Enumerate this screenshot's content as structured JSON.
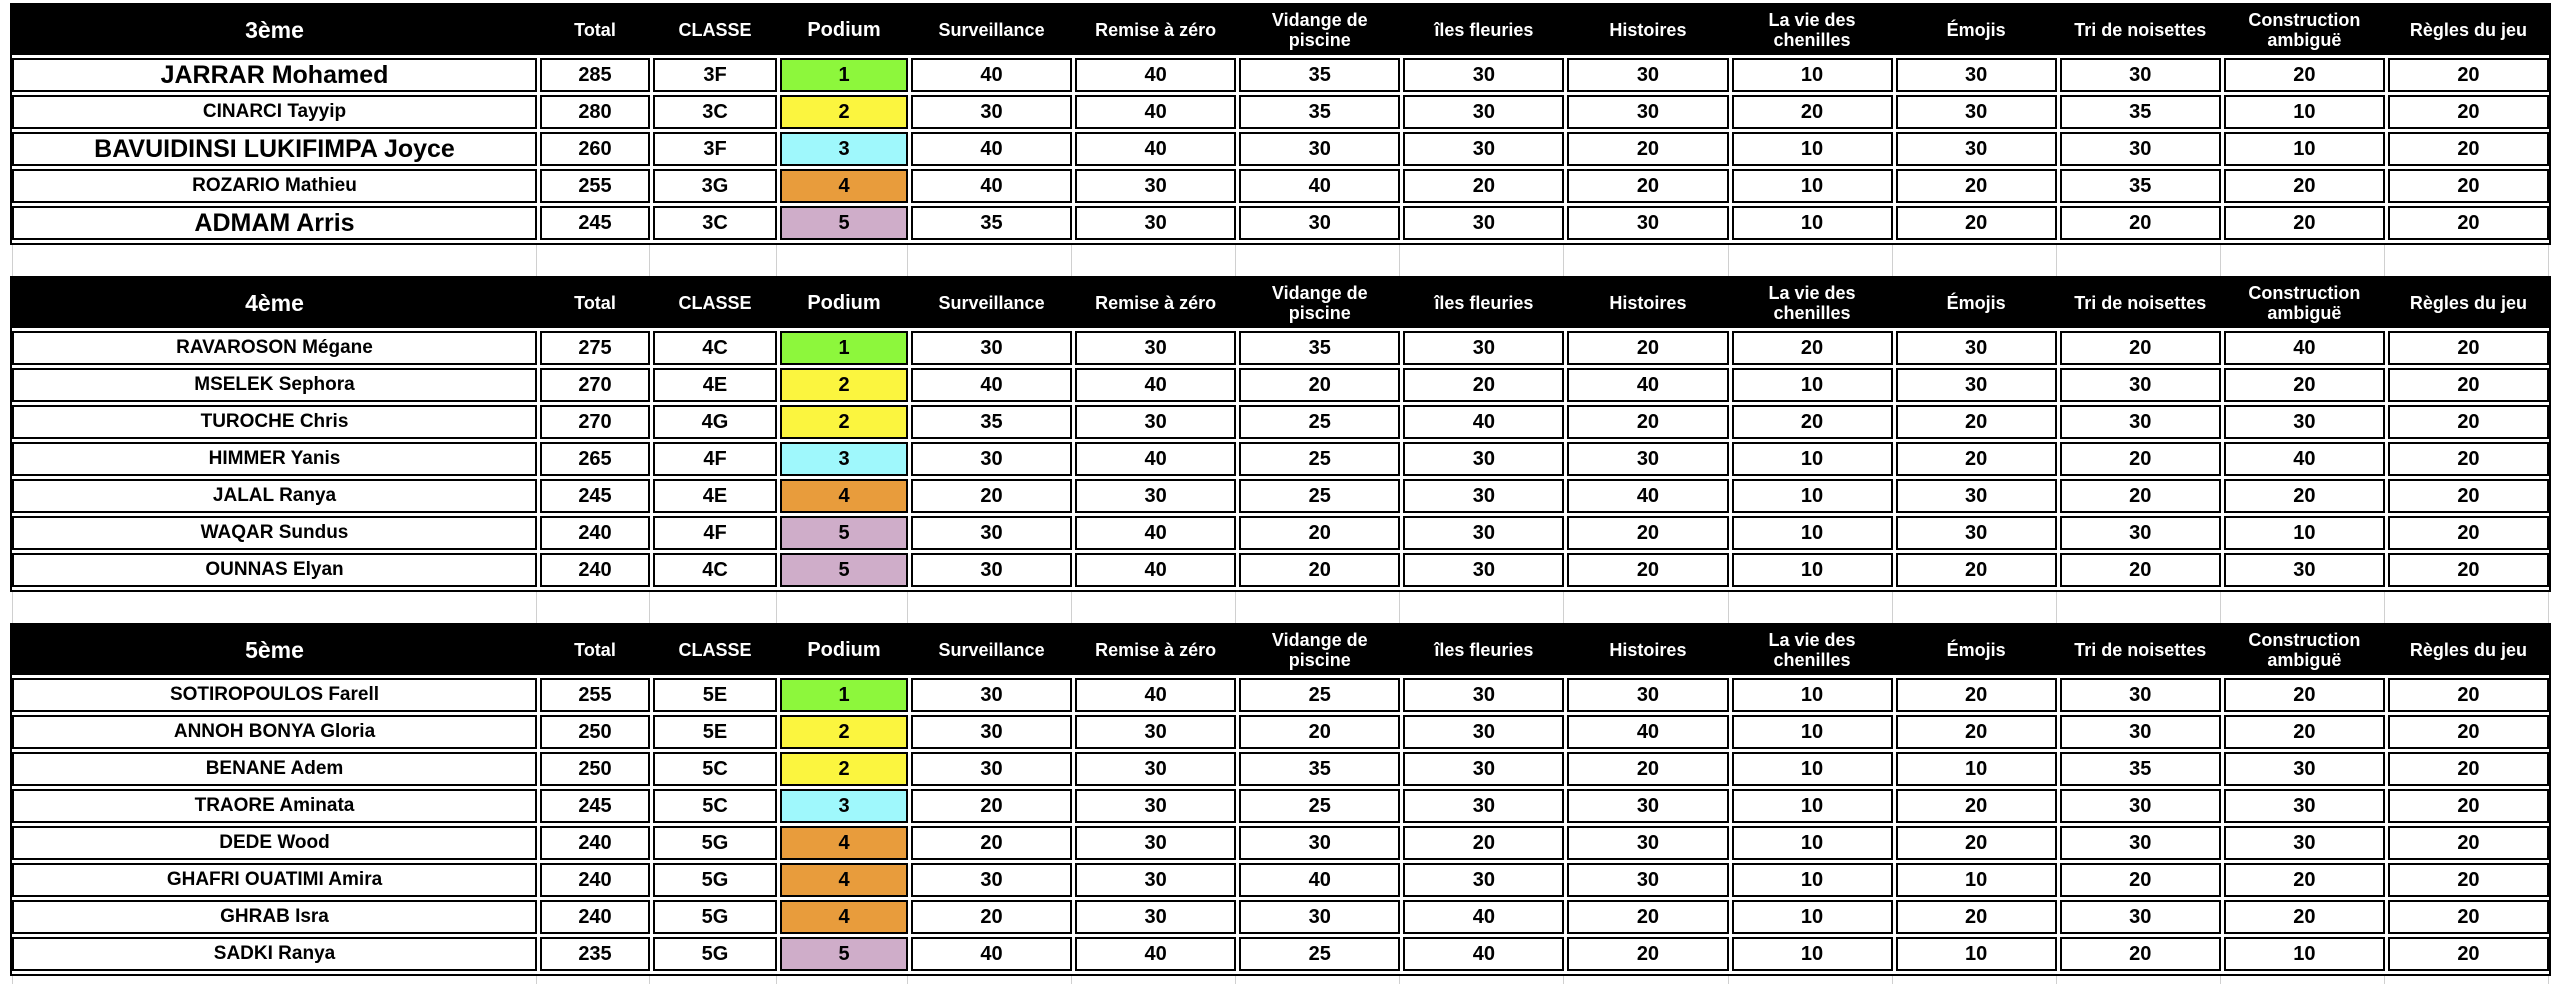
{
  "sheet": {
    "header_labels": {
      "total": "Total",
      "classe": "CLASSE",
      "podium": "Podium"
    },
    "criteria": [
      "Surveillance",
      "Remise à zéro",
      "Vidange de piscine",
      "îles fleuries",
      "Histoires",
      "La vie des chenilles",
      "Émojis",
      "Tri de noisettes",
      "Construction ambiguë",
      "Règles du jeu"
    ],
    "podium_colors": {
      "1": "#8DF73C",
      "2": "#FBF53F",
      "3": "#9FF8FC",
      "4": "#E89C3C",
      "5": "#CFADC9"
    },
    "grid_line_color": "#d0d0d0",
    "header_bg": "#000000",
    "header_text_color": "#ffffff",
    "tables": [
      {
        "grade": "3ème",
        "rows": [
          {
            "name": "JARRAR Mohamed",
            "name_style": "large",
            "total": 285,
            "classe": "3F",
            "podium": "1",
            "scores": [
              40,
              40,
              35,
              30,
              30,
              10,
              30,
              30,
              20,
              20
            ]
          },
          {
            "name": "CINARCI Tayyip",
            "name_style": "normal",
            "total": 280,
            "classe": "3C",
            "podium": "2",
            "scores": [
              30,
              40,
              35,
              30,
              30,
              20,
              30,
              35,
              10,
              20
            ]
          },
          {
            "name": "BAVUIDINSI LUKIFIMPA Joyce",
            "name_style": "large",
            "total": 260,
            "classe": "3F",
            "podium": "3",
            "scores": [
              40,
              40,
              30,
              30,
              20,
              10,
              30,
              30,
              10,
              20
            ]
          },
          {
            "name": "ROZARIO Mathieu",
            "name_style": "normal",
            "total": 255,
            "classe": "3G",
            "podium": "4",
            "scores": [
              40,
              30,
              40,
              20,
              20,
              10,
              20,
              35,
              20,
              20
            ]
          },
          {
            "name": "ADMAM Arris",
            "name_style": "large",
            "total": 245,
            "classe": "3C",
            "podium": "5",
            "scores": [
              35,
              30,
              30,
              30,
              30,
              10,
              20,
              20,
              20,
              20
            ]
          }
        ]
      },
      {
        "grade": "4ème",
        "rows": [
          {
            "name": "RAVAROSON Mégane",
            "name_style": "normal",
            "total": 275,
            "classe": "4C",
            "podium": "1",
            "scores": [
              30,
              30,
              35,
              30,
              20,
              20,
              30,
              20,
              40,
              20
            ]
          },
          {
            "name": "MSELEK Sephora",
            "name_style": "normal",
            "total": 270,
            "classe": "4E",
            "podium": "2",
            "scores": [
              40,
              40,
              20,
              20,
              40,
              10,
              30,
              30,
              20,
              20
            ]
          },
          {
            "name": "TUROCHE Chris",
            "name_style": "normal",
            "total": 270,
            "classe": "4G",
            "podium": "2",
            "scores": [
              35,
              30,
              25,
              40,
              20,
              20,
              20,
              30,
              30,
              20
            ]
          },
          {
            "name": "HIMMER Yanis",
            "name_style": "normal",
            "total": 265,
            "classe": "4F",
            "podium": "3",
            "scores": [
              30,
              40,
              25,
              30,
              30,
              10,
              20,
              20,
              40,
              20
            ]
          },
          {
            "name": "JALAL Ranya",
            "name_style": "normal",
            "total": 245,
            "classe": "4E",
            "podium": "4",
            "scores": [
              20,
              30,
              25,
              30,
              40,
              10,
              30,
              20,
              20,
              20
            ]
          },
          {
            "name": "WAQAR Sundus",
            "name_style": "normal",
            "total": 240,
            "classe": "4F",
            "podium": "5",
            "scores": [
              30,
              40,
              20,
              30,
              20,
              10,
              30,
              30,
              10,
              20
            ]
          },
          {
            "name": "OUNNAS Elyan",
            "name_style": "normal",
            "total": 240,
            "classe": "4C",
            "podium": "5",
            "scores": [
              30,
              40,
              20,
              30,
              20,
              10,
              20,
              20,
              30,
              20
            ]
          }
        ]
      },
      {
        "grade": "5ème",
        "rows": [
          {
            "name": "SOTIROPOULOS Farell",
            "name_style": "normal",
            "total": 255,
            "classe": "5E",
            "podium": "1",
            "scores": [
              30,
              40,
              25,
              30,
              30,
              10,
              20,
              30,
              20,
              20
            ]
          },
          {
            "name": "ANNOH BONYA Gloria",
            "name_style": "normal",
            "total": 250,
            "classe": "5E",
            "podium": "2",
            "scores": [
              30,
              30,
              20,
              30,
              40,
              10,
              20,
              30,
              20,
              20
            ]
          },
          {
            "name": "BENANE Adem",
            "name_style": "normal",
            "total": 250,
            "classe": "5C",
            "podium": "2",
            "scores": [
              30,
              30,
              35,
              30,
              20,
              10,
              10,
              35,
              30,
              20
            ]
          },
          {
            "name": "TRAORE Aminata",
            "name_style": "normal",
            "total": 245,
            "classe": "5C",
            "podium": "3",
            "scores": [
              20,
              30,
              25,
              30,
              30,
              10,
              20,
              30,
              30,
              20
            ]
          },
          {
            "name": "DEDE Wood",
            "name_style": "normal",
            "total": 240,
            "classe": "5G",
            "podium": "4",
            "scores": [
              20,
              30,
              30,
              20,
              30,
              10,
              20,
              30,
              30,
              20
            ]
          },
          {
            "name": "GHAFRI OUATIMI Amira",
            "name_style": "normal",
            "total": 240,
            "classe": "5G",
            "podium": "4",
            "scores": [
              30,
              30,
              40,
              30,
              30,
              10,
              10,
              20,
              20,
              20
            ]
          },
          {
            "name": "GHRAB Isra",
            "name_style": "normal",
            "total": 240,
            "classe": "5G",
            "podium": "4",
            "scores": [
              20,
              30,
              30,
              40,
              20,
              10,
              20,
              30,
              20,
              20
            ]
          },
          {
            "name": "SADKI Ranya",
            "name_style": "normal",
            "total": 235,
            "classe": "5G",
            "podium": "5",
            "scores": [
              40,
              40,
              25,
              40,
              20,
              10,
              10,
              20,
              10,
              20
            ]
          }
        ]
      }
    ]
  }
}
